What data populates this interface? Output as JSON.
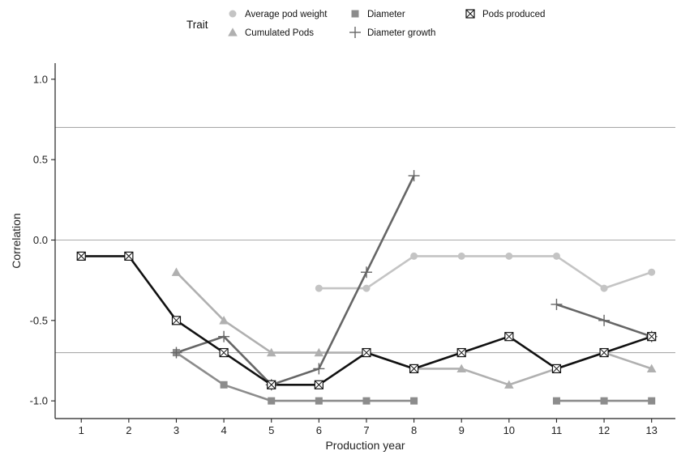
{
  "chart_data": {
    "type": "line",
    "xlabel": "Production year",
    "ylabel": "Correlation",
    "xlim": [
      0.45,
      13.5
    ],
    "ylim": [
      -1.11,
      1.1
    ],
    "x_ticks": [
      1,
      2,
      3,
      4,
      5,
      6,
      7,
      8,
      9,
      10,
      11,
      12,
      13
    ],
    "y_ticks": [
      -1.0,
      -0.5,
      0.0,
      0.5,
      1.0
    ],
    "y_tick_labels": [
      "-1.0",
      "-0.5",
      "0.0",
      "0.5",
      "1.0"
    ],
    "reference_lines": [
      0.7,
      0.0,
      -0.7
    ],
    "grid": false,
    "legend": {
      "title": "Trait",
      "placement": "top"
    },
    "series": [
      {
        "name": "Average pod weight",
        "marker": "circle",
        "color": "#c4c4c4",
        "points": [
          [
            6,
            -0.3
          ],
          [
            7,
            -0.3
          ],
          [
            8,
            -0.1
          ],
          [
            9,
            -0.1
          ],
          [
            10,
            -0.1
          ],
          [
            11,
            -0.1
          ],
          [
            12,
            -0.3
          ],
          [
            13,
            -0.2
          ]
        ]
      },
      {
        "name": "Cumulated Pods",
        "marker": "triangle",
        "color": "#b0b0b0",
        "points": [
          [
            3,
            -0.2
          ],
          [
            4,
            -0.5
          ],
          [
            5,
            -0.7
          ],
          [
            6,
            -0.7
          ],
          [
            7,
            -0.7
          ],
          [
            8,
            -0.8
          ],
          [
            9,
            -0.8
          ],
          [
            10,
            -0.9
          ],
          [
            11,
            -0.8
          ],
          [
            12,
            -0.7
          ],
          [
            13,
            -0.8
          ]
        ]
      },
      {
        "name": "Diameter",
        "marker": "square",
        "color": "#8c8c8c",
        "segments": [
          [
            [
              3,
              -0.7
            ],
            [
              4,
              -0.9
            ],
            [
              5,
              -1.0
            ],
            [
              6,
              -1.0
            ],
            [
              7,
              -1.0
            ],
            [
              8,
              -1.0
            ]
          ],
          [
            [
              11,
              -1.0
            ],
            [
              12,
              -1.0
            ],
            [
              13,
              -1.0
            ]
          ]
        ]
      },
      {
        "name": "Diameter growth",
        "marker": "plus",
        "color": "#666666",
        "segments": [
          [
            [
              3,
              -0.7
            ],
            [
              4,
              -0.6
            ],
            [
              5,
              -0.9
            ],
            [
              6,
              -0.8
            ],
            [
              7,
              -0.2
            ],
            [
              8,
              0.4
            ]
          ],
          [
            [
              11,
              -0.4
            ],
            [
              12,
              -0.5
            ],
            [
              13,
              -0.6
            ]
          ]
        ]
      },
      {
        "name": "Pods produced",
        "marker": "boxx",
        "color": "#111111",
        "points": [
          [
            1,
            -0.1
          ],
          [
            2,
            -0.1
          ],
          [
            3,
            -0.5
          ],
          [
            4,
            -0.7
          ],
          [
            5,
            -0.9
          ],
          [
            6,
            -0.9
          ],
          [
            7,
            -0.7
          ],
          [
            8,
            -0.8
          ],
          [
            9,
            -0.7
          ],
          [
            10,
            -0.6
          ],
          [
            11,
            -0.8
          ],
          [
            12,
            -0.7
          ],
          [
            13,
            -0.6
          ]
        ]
      }
    ]
  }
}
